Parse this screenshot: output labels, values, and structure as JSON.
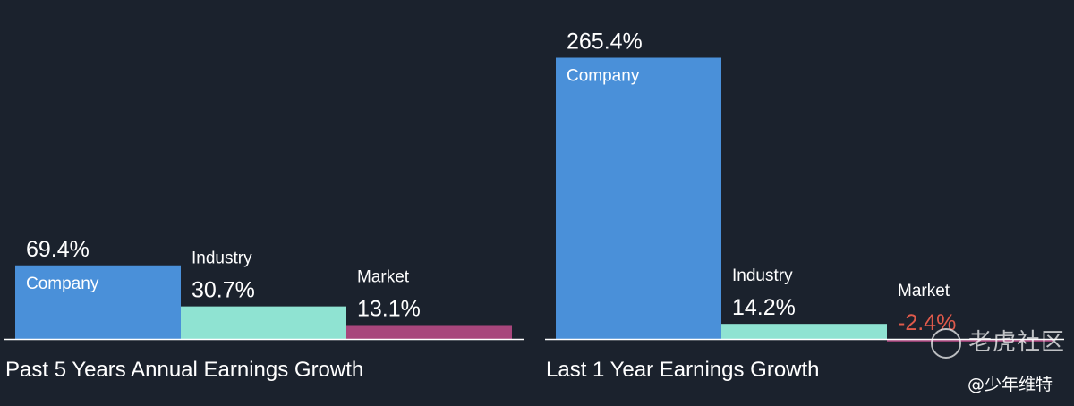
{
  "chart_data": [
    {
      "type": "bar",
      "title": "Past 5 Years Annual Earnings Growth",
      "categories": [
        "Company",
        "Industry",
        "Market"
      ],
      "values": [
        69.4,
        30.7,
        13.1
      ],
      "value_labels": [
        "69.4%",
        "30.7%",
        "13.1%"
      ],
      "unit": "%",
      "colors": [
        "#4a90d9",
        "#8fe3d2",
        "#a8467c"
      ]
    },
    {
      "type": "bar",
      "title": "Last 1 Year Earnings Growth",
      "categories": [
        "Company",
        "Industry",
        "Market"
      ],
      "values": [
        265.4,
        14.2,
        -2.4
      ],
      "value_labels": [
        "265.4%",
        "14.2%",
        "-2.4%"
      ],
      "unit": "%",
      "colors": [
        "#4a90d9",
        "#8fe3d2",
        "#a8467c"
      ],
      "negative_label_color": "#e05a4b"
    }
  ],
  "watermark": {
    "text": "老虎社区",
    "handle": "@少年维特"
  },
  "colors": {
    "background": "#1b222d",
    "baseline": "#ffffff",
    "label": "#ffffff"
  }
}
